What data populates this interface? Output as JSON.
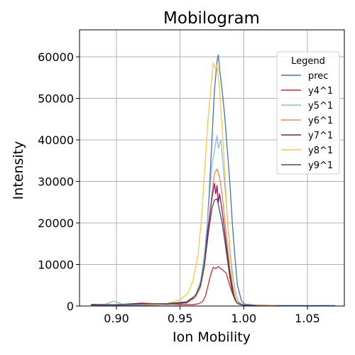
{
  "chart_data": {
    "type": "line",
    "title": "Mobilogram",
    "xlabel": "Ion Mobility",
    "ylabel": "Intensity",
    "xlim": [
      0.871,
      1.079
    ],
    "ylim": [
      0,
      66500
    ],
    "xticks": [
      0.9,
      0.95,
      1.0,
      1.05
    ],
    "xtick_labels": [
      "0.90",
      "0.95",
      "1.00",
      "1.05"
    ],
    "yticks": [
      0,
      10000,
      20000,
      30000,
      40000,
      50000,
      60000
    ],
    "ytick_labels": [
      "0",
      "10000",
      "20000",
      "30000",
      "40000",
      "50000",
      "60000"
    ],
    "grid": true,
    "legend": {
      "title": "Legend",
      "placement": "upper-right"
    },
    "series": [
      {
        "name": "prec",
        "color": "#4472b4",
        "x": [
          0.88,
          0.9,
          0.92,
          0.94,
          0.95,
          0.955,
          0.96,
          0.965,
          0.968,
          0.971,
          0.973,
          0.975,
          0.977,
          0.979,
          0.98,
          0.981,
          0.983,
          0.985,
          0.987,
          0.989,
          0.991,
          0.993,
          0.995,
          0.998,
          1.0,
          1.01,
          1.03,
          1.05,
          1.072
        ],
        "y": [
          200,
          100,
          200,
          300,
          500,
          900,
          1800,
          4000,
          9000,
          18000,
          28000,
          40000,
          52000,
          59000,
          60500,
          57000,
          52000,
          46000,
          38000,
          30000,
          20000,
          12000,
          5000,
          1500,
          500,
          200,
          100,
          100,
          100
        ]
      },
      {
        "name": "y4^1",
        "color": "#d62728",
        "x": [
          0.88,
          0.9,
          0.92,
          0.94,
          0.96,
          0.965,
          0.968,
          0.97,
          0.972,
          0.974,
          0.976,
          0.978,
          0.98,
          0.982,
          0.984,
          0.986,
          0.988,
          0.99,
          0.992,
          0.994,
          0.996,
          0.998,
          1.0,
          1.01
        ],
        "y": [
          400,
          300,
          700,
          400,
          300,
          600,
          1200,
          2500,
          5000,
          7500,
          9300,
          9000,
          9500,
          9000,
          8500,
          8000,
          6000,
          4000,
          2300,
          1000,
          500,
          300,
          200,
          100
        ]
      },
      {
        "name": "y5^1",
        "color": "#8bbcd6",
        "x": [
          0.88,
          0.89,
          0.898,
          0.905,
          0.92,
          0.94,
          0.955,
          0.962,
          0.966,
          0.969,
          0.972,
          0.975,
          0.977,
          0.979,
          0.98,
          0.982,
          0.984,
          0.986,
          0.988,
          0.99,
          0.992,
          0.994,
          0.996,
          0.998,
          1.0,
          1.01
        ],
        "y": [
          300,
          300,
          1200,
          400,
          300,
          300,
          800,
          2500,
          6000,
          12000,
          22000,
          34000,
          37500,
          41000,
          38000,
          40000,
          33000,
          26000,
          18000,
          11000,
          6000,
          2500,
          1000,
          500,
          300,
          200
        ]
      },
      {
        "name": "y6^1",
        "color": "#f08a4b",
        "x": [
          0.88,
          0.9,
          0.92,
          0.94,
          0.955,
          0.962,
          0.966,
          0.969,
          0.972,
          0.975,
          0.977,
          0.979,
          0.981,
          0.983,
          0.985,
          0.987,
          0.989,
          0.991,
          0.993,
          0.995,
          0.998,
          1.0,
          1.01,
          1.025
        ],
        "y": [
          300,
          300,
          300,
          500,
          700,
          2000,
          4500,
          9000,
          17000,
          27000,
          32000,
          33000,
          31000,
          27000,
          21000,
          15000,
          9000,
          5000,
          2000,
          800,
          400,
          200,
          100,
          100
        ]
      },
      {
        "name": "y7^1",
        "color": "#8b1a5e",
        "x": [
          0.88,
          0.9,
          0.92,
          0.94,
          0.955,
          0.962,
          0.966,
          0.969,
          0.972,
          0.975,
          0.977,
          0.978,
          0.979,
          0.98,
          0.981,
          0.983,
          0.985,
          0.987,
          0.989,
          0.991,
          0.993,
          0.995,
          0.998,
          1.0,
          1.01
        ],
        "y": [
          300,
          300,
          600,
          500,
          800,
          2500,
          5000,
          10000,
          19000,
          26000,
          29500,
          27000,
          29000,
          25000,
          27000,
          23000,
          18000,
          13000,
          8000,
          4500,
          2000,
          900,
          400,
          200,
          100
        ]
      },
      {
        "name": "y8^1",
        "color": "#f7c842",
        "x": [
          0.88,
          0.9,
          0.92,
          0.94,
          0.95,
          0.956,
          0.96,
          0.964,
          0.967,
          0.97,
          0.972,
          0.974,
          0.976,
          0.978,
          0.979,
          0.981,
          0.983,
          0.985,
          0.987,
          0.989,
          0.991,
          0.993,
          0.995,
          0.998,
          1.0,
          1.01
        ],
        "y": [
          300,
          300,
          400,
          600,
          1500,
          3000,
          6000,
          12000,
          22000,
          36000,
          45000,
          52000,
          58500,
          57000,
          58000,
          52000,
          43000,
          33000,
          22000,
          13000,
          6000,
          2500,
          800,
          300,
          200,
          100
        ]
      },
      {
        "name": "y9^1",
        "color": "#4a4a5a",
        "x": [
          0.88,
          0.9,
          0.92,
          0.94,
          0.955,
          0.962,
          0.966,
          0.969,
          0.972,
          0.975,
          0.977,
          0.979,
          0.981,
          0.983,
          0.985,
          0.987,
          0.989,
          0.991,
          0.993,
          0.995,
          0.998,
          1.0,
          1.01
        ],
        "y": [
          300,
          300,
          500,
          600,
          1000,
          2500,
          5000,
          10000,
          17000,
          23500,
          25500,
          25800,
          23000,
          20000,
          16000,
          11500,
          7000,
          3500,
          1500,
          600,
          300,
          200,
          100
        ]
      }
    ]
  }
}
